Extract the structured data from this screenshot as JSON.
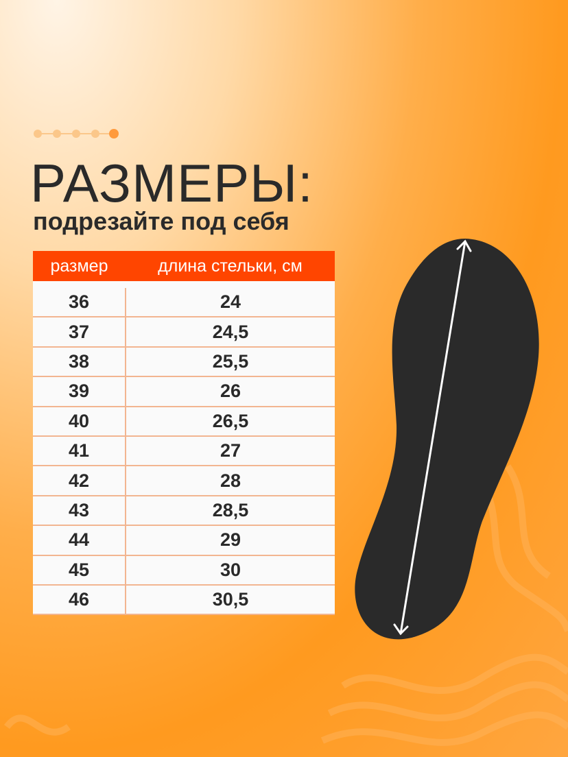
{
  "heading": {
    "title": "РАЗМЕРЫ:",
    "subtitle": "подрезайте под себя"
  },
  "table": {
    "columns": [
      "размер",
      "длина стельки, см"
    ],
    "rows": [
      [
        "36",
        "24"
      ],
      [
        "37",
        "24,5"
      ],
      [
        "38",
        "25,5"
      ],
      [
        "39",
        "26"
      ],
      [
        "40",
        "26,5"
      ],
      [
        "41",
        "27"
      ],
      [
        "42",
        "28"
      ],
      [
        "43",
        "28,5"
      ],
      [
        "44",
        "29"
      ],
      [
        "45",
        "30"
      ],
      [
        "46",
        "30,5"
      ]
    ]
  },
  "colors": {
    "accent": "#ff4500",
    "insole": "#2a2a2a",
    "background": "#ff9a1f"
  },
  "illustration": {
    "icon": "insole-with-length-arrow-icon"
  }
}
